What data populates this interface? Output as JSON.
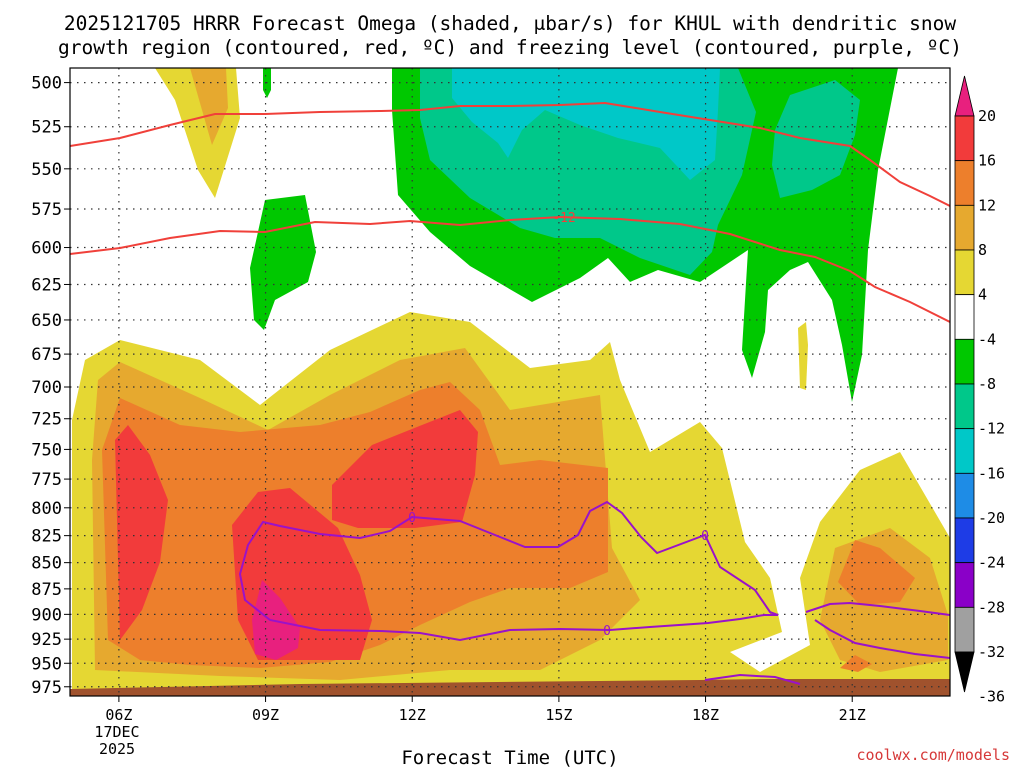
{
  "chart_data": {
    "type": "heatmap",
    "title_line1": "2025121705 HRRR Forecast Omega (shaded, μbar/s) for KHUL with dendritic snow",
    "title_line2": "growth region (contoured, red, ºC) and freezing level (contoured, purple, ºC)",
    "xlabel": "Forecast Time (UTC)",
    "x_ticks": [
      "06Z",
      "09Z",
      "12Z",
      "15Z",
      "18Z",
      "21Z"
    ],
    "x_tick_hours": [
      6,
      9,
      12,
      15,
      18,
      21
    ],
    "x_date_lines": [
      "17DEC",
      "2025"
    ],
    "xlim_hours": [
      5.0,
      23.0
    ],
    "y_ticks": [
      500,
      525,
      550,
      575,
      600,
      625,
      650,
      675,
      700,
      725,
      750,
      775,
      800,
      825,
      850,
      875,
      900,
      925,
      950,
      975
    ],
    "ylim": [
      492,
      985
    ],
    "y_scale": "log (pressure, hPa, decreasing upward)",
    "grid": "dotted",
    "colorbar_labels": [
      "20",
      "16",
      "12",
      "8",
      "4",
      "-4",
      "-8",
      "-12",
      "-16",
      "-20",
      "-24",
      "-28",
      "-32",
      "-36"
    ],
    "colorbar_colors": [
      "#e8207e",
      "#f23b3b",
      "#ed7f2c",
      "#e6a92f",
      "#e5d733",
      "#ffffff",
      "#00c800",
      "#00c88a",
      "#00c8c8",
      "#1e8ce6",
      "#1e3ce6",
      "#8a00c8",
      "#a0a0a0",
      "#000000"
    ],
    "contour_labels": [
      "-12",
      "0"
    ],
    "dgz_contours_c": [
      -12,
      -18
    ],
    "freezing_level_c": 0,
    "ground_color": "#a0522d",
    "credit": "coolwx.com/models"
  }
}
